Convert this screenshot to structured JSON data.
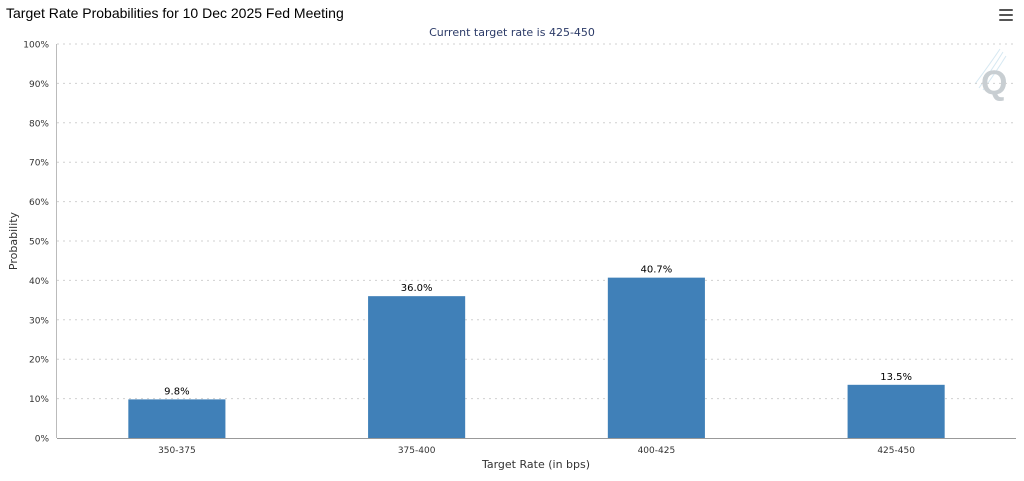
{
  "page": {
    "title": "Target Rate Probabilities for 10 Dec 2025 Fed Meeting",
    "menu_icon": "hamburger-menu-icon",
    "watermark_icon": "q-logo-icon"
  },
  "chart_data": {
    "type": "bar",
    "title": "Target Rate Probabilities for 10 Dec 2025 Fed Meeting",
    "subtitle": "Current target rate is 425-450",
    "xlabel": "Target Rate (in bps)",
    "ylabel": "Probability",
    "categories": [
      "350-375",
      "375-400",
      "400-425",
      "425-450"
    ],
    "values": [
      9.8,
      36.0,
      40.7,
      13.5
    ],
    "data_labels": [
      "9.8%",
      "36.0%",
      "40.7%",
      "13.5%"
    ],
    "ylim": [
      0,
      100
    ],
    "y_ticks": [
      0,
      10,
      20,
      30,
      40,
      50,
      60,
      70,
      80,
      90,
      100
    ],
    "y_tick_labels": [
      "0%",
      "10%",
      "20%",
      "30%",
      "40%",
      "50%",
      "60%",
      "70%",
      "80%",
      "90%",
      "100%"
    ],
    "grid": true,
    "legend": "none",
    "colors": {
      "bar": "#4080b8",
      "subtitle": "#2b3a67",
      "grid": "#d0d0d0",
      "axis": "#999999",
      "text": "#333333"
    }
  }
}
